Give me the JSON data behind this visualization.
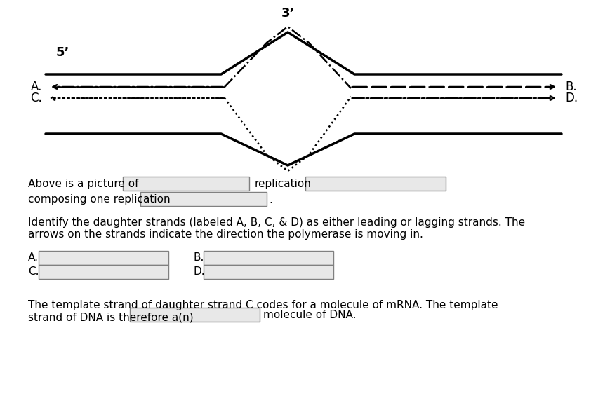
{
  "bg_color": "#ffffff",
  "title_3prime": "3’",
  "title_5prime": "5’",
  "label_A": "A.",
  "label_B": "B.",
  "label_C": "C.",
  "label_D": "D.",
  "text_line1": "Above is a picture of",
  "text_replication": "replication",
  "text_line2": "composing one replication",
  "text_identify": "Identify the daughter strands (labeled A, B, C, & D) as either leading or lagging strands. The\narrows on the strands indicate the direction the polymerase is moving in.",
  "text_template": "The template strand of daughter strand C codes for a molecule of mRNA. The template\nstrand of DNA is therefore a(n)",
  "text_molecule": "molecule of DNA.",
  "box_color": "#d3d3d3",
  "text_color": "#000000",
  "font_size": 11
}
